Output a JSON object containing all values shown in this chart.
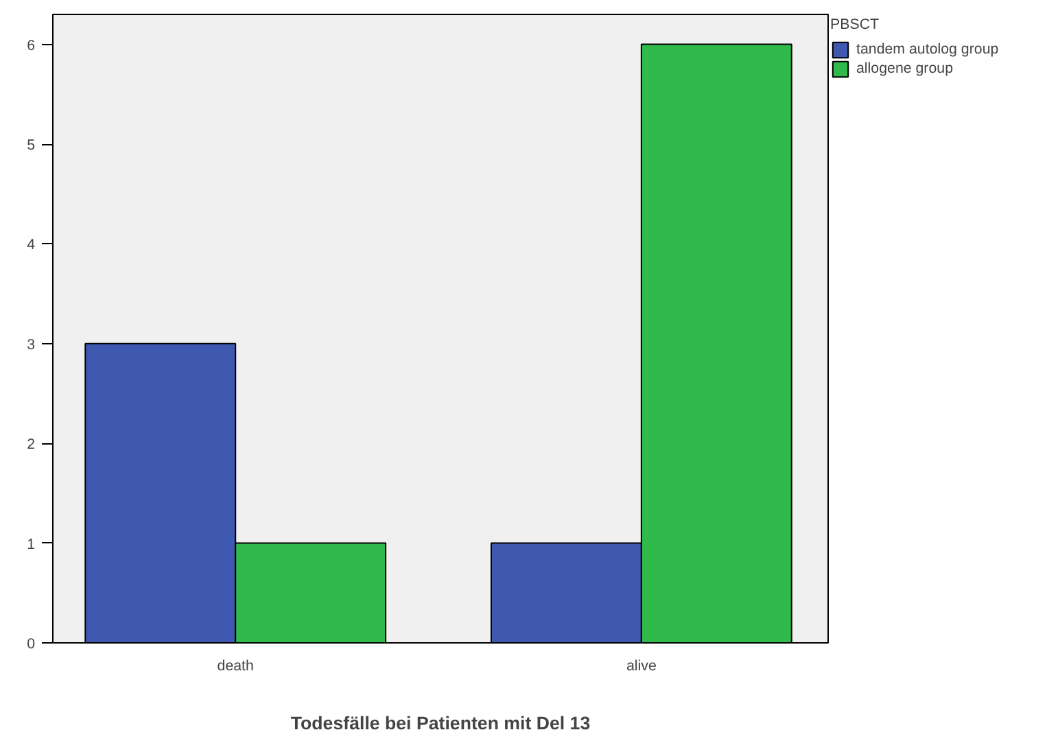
{
  "chart_data": {
    "type": "bar",
    "xlabel": "Todesfälle bei Patienten mit Del 13",
    "legend_title": "PBSCT",
    "categories": [
      "death",
      "alive"
    ],
    "series": [
      {
        "name": "tandem autolog group",
        "color": "#3f58b0",
        "values": [
          3,
          1
        ]
      },
      {
        "name": "allogene group",
        "color": "#2fba4b",
        "values": [
          1,
          6
        ]
      }
    ],
    "ylim": [
      0,
      6.3
    ],
    "yticks": [
      0,
      1,
      2,
      3,
      4,
      5,
      6
    ],
    "grid": false,
    "legend": "top right"
  }
}
